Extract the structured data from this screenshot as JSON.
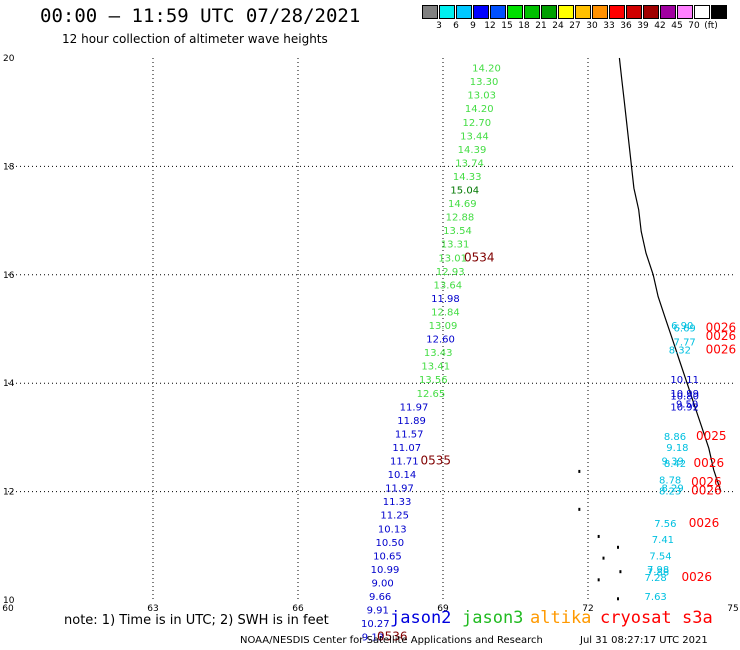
{
  "header": {
    "title": "00:00 – 11:59 UTC 07/28/2021",
    "subtitle": "12 hour collection of altimeter wave heights"
  },
  "legend": {
    "colors": [
      "#808080",
      "#00f0f0",
      "#00c8ff",
      "#0000ff",
      "#0050ff",
      "#00e000",
      "#00c000",
      "#00a000",
      "#ffff00",
      "#ffc000",
      "#ff9000",
      "#ff0000",
      "#d00000",
      "#a00000",
      "#a000a0",
      "#ff80ff",
      "#ffffff",
      "#000000"
    ],
    "labels": [
      "3",
      "6",
      "9",
      "12",
      "15",
      "18",
      "21",
      "24",
      "27",
      "30",
      "33",
      "36",
      "39",
      "42",
      "45",
      "70",
      "(ft)"
    ]
  },
  "map": {
    "lon_range": [
      60,
      75
    ],
    "lat_range": [
      10,
      20
    ],
    "x_ticks": [
      "60",
      "63",
      "66",
      "69",
      "72",
      "75"
    ],
    "y_ticks": [
      "10",
      "12",
      "14",
      "16",
      "18",
      "20"
    ],
    "colors": {
      "jason2": "#0000cc",
      "jason3": "#44dd44",
      "cryosat": "#ff0000",
      "time": "#800000",
      "altika_legend": "#ff9900",
      "cryosat_legend": "#ff0000",
      "s3a": "#00c0e0"
    },
    "jason3_track": [
      {
        "v": "14.20",
        "lon": 69.9,
        "lat": 19.75
      },
      {
        "v": "13.30",
        "lon": 69.85,
        "lat": 19.5
      },
      {
        "v": "13.03",
        "lon": 69.8,
        "lat": 19.25
      },
      {
        "v": "14.20",
        "lon": 69.75,
        "lat": 19.0
      },
      {
        "v": "12.70",
        "lon": 69.7,
        "lat": 18.75
      },
      {
        "v": "13.44",
        "lon": 69.65,
        "lat": 18.5
      },
      {
        "v": "14.39",
        "lon": 69.6,
        "lat": 18.25
      },
      {
        "v": "13.74",
        "lon": 69.55,
        "lat": 18.0
      },
      {
        "v": "14.33",
        "lon": 69.5,
        "lat": 17.75
      },
      {
        "v": "15.04",
        "lon": 69.45,
        "lat": 17.5
      },
      {
        "v": "14.69",
        "lon": 69.4,
        "lat": 17.25
      },
      {
        "v": "12.88",
        "lon": 69.35,
        "lat": 17.0
      },
      {
        "v": "13.54",
        "lon": 69.3,
        "lat": 16.75
      },
      {
        "v": "13.31",
        "lon": 69.25,
        "lat": 16.5
      },
      {
        "v": "13.01",
        "lon": 69.2,
        "lat": 16.25
      },
      {
        "v": "12.93",
        "lon": 69.15,
        "lat": 16.0
      },
      {
        "v": "13.64",
        "lon": 69.1,
        "lat": 15.75
      },
      {
        "v": "12.84",
        "lon": 69.05,
        "lat": 15.25
      },
      {
        "v": "13.09",
        "lon": 69.0,
        "lat": 15.0
      },
      {
        "v": "13.43",
        "lon": 68.9,
        "lat": 14.5
      },
      {
        "v": "13.41",
        "lon": 68.85,
        "lat": 14.25
      },
      {
        "v": "13.56",
        "lon": 68.8,
        "lat": 14.0
      },
      {
        "v": "12.65",
        "lon": 68.75,
        "lat": 13.75
      }
    ],
    "jason2_track": [
      {
        "v": "11.98",
        "lon": 69.05,
        "lat": 15.5
      },
      {
        "v": "12.60",
        "lon": 68.95,
        "lat": 14.75
      },
      {
        "v": "11.97",
        "lon": 68.4,
        "lat": 13.5
      },
      {
        "v": "11.89",
        "lon": 68.35,
        "lat": 13.25
      },
      {
        "v": "11.57",
        "lon": 68.3,
        "lat": 13.0
      },
      {
        "v": "11.07",
        "lon": 68.25,
        "lat": 12.75
      },
      {
        "v": "11.71",
        "lon": 68.2,
        "lat": 12.5
      },
      {
        "v": "10.14",
        "lon": 68.15,
        "lat": 12.25
      },
      {
        "v": "11.97",
        "lon": 68.1,
        "lat": 12.0
      },
      {
        "v": "11.33",
        "lon": 68.05,
        "lat": 11.75
      },
      {
        "v": "11.25",
        "lon": 68.0,
        "lat": 11.5
      },
      {
        "v": "10.13",
        "lon": 67.95,
        "lat": 11.25
      },
      {
        "v": "10.50",
        "lon": 67.9,
        "lat": 11.0
      },
      {
        "v": "10.65",
        "lon": 67.85,
        "lat": 10.75
      },
      {
        "v": "10.99",
        "lon": 67.8,
        "lat": 10.5
      },
      {
        "v": "9.00",
        "lon": 67.75,
        "lat": 10.25
      },
      {
        "v": "9.66",
        "lon": 67.7,
        "lat": 10.0
      },
      {
        "v": "9.91",
        "lon": 67.65,
        "lat": 9.75
      },
      {
        "v": "10.27",
        "lon": 67.6,
        "lat": 9.5
      },
      {
        "v": "9.13",
        "lon": 67.55,
        "lat": 9.25
      }
    ],
    "s3a_track": [
      {
        "v": "6.90",
        "lon": 73.95,
        "lat": 15.0
      },
      {
        "v": "6.69",
        "lon": 74.0,
        "lat": 14.95
      },
      {
        "v": "7.77",
        "lon": 74.0,
        "lat": 14.7
      },
      {
        "v": "8.32",
        "lon": 73.9,
        "lat": 14.55
      },
      {
        "v": "8.86",
        "lon": 73.8,
        "lat": 12.95
      },
      {
        "v": "9.18",
        "lon": 73.85,
        "lat": 12.75
      },
      {
        "v": "9.39",
        "lon": 73.75,
        "lat": 12.5
      },
      {
        "v": "8.42",
        "lon": 73.8,
        "lat": 12.45
      },
      {
        "v": "8.78",
        "lon": 73.7,
        "lat": 12.15
      },
      {
        "v": "8.29",
        "lon": 73.75,
        "lat": 12.0
      },
      {
        "v": "8.23",
        "lon": 73.7,
        "lat": 11.95
      },
      {
        "v": "7.56",
        "lon": 73.6,
        "lat": 11.35
      },
      {
        "v": "7.41",
        "lon": 73.55,
        "lat": 11.05
      },
      {
        "v": "7.54",
        "lon": 73.5,
        "lat": 10.75
      },
      {
        "v": "7.98",
        "lon": 73.45,
        "lat": 10.5
      },
      {
        "v": "7.88",
        "lon": 73.45,
        "lat": 10.45
      },
      {
        "v": "7.28",
        "lon": 73.4,
        "lat": 10.35
      },
      {
        "v": "7.63",
        "lon": 73.4,
        "lat": 10.0
      }
    ],
    "jason2_upper": [
      {
        "v": "10.11",
        "lon": 74.0,
        "lat": 14.0
      },
      {
        "v": "10.99",
        "lon": 74.0,
        "lat": 13.75
      },
      {
        "v": "10.80",
        "lon": 74.0,
        "lat": 13.7
      },
      {
        "v": "9.50",
        "lon": 74.05,
        "lat": 13.55
      },
      {
        "v": "10.92",
        "lon": 74.0,
        "lat": 13.5
      }
    ],
    "times": [
      {
        "t": "0534",
        "lon": 69.75,
        "lat": 16.25,
        "cls": "time"
      },
      {
        "t": "0535",
        "lon": 68.85,
        "lat": 12.5,
        "cls": "time"
      },
      {
        "t": "0536",
        "lon": 67.95,
        "lat": 9.25,
        "cls": "time"
      },
      {
        "t": "0026",
        "lon": 74.75,
        "lat": 14.95,
        "cls": "cryosat"
      },
      {
        "t": "0026",
        "lon": 74.75,
        "lat": 14.8,
        "cls": "cryosat"
      },
      {
        "t": "0026",
        "lon": 74.75,
        "lat": 14.55,
        "cls": "cryosat"
      },
      {
        "t": "0025",
        "lon": 74.55,
        "lat": 12.95,
        "cls": "cryosat"
      },
      {
        "t": "0026",
        "lon": 74.5,
        "lat": 12.45,
        "cls": "cryosat"
      },
      {
        "t": "0026",
        "lon": 74.45,
        "lat": 12.1,
        "cls": "cryosat"
      },
      {
        "t": "0026",
        "lon": 74.45,
        "lat": 11.95,
        "cls": "cryosat"
      },
      {
        "t": "0026",
        "lon": 74.4,
        "lat": 11.35,
        "cls": "cryosat"
      },
      {
        "t": "0026",
        "lon": 74.25,
        "lat": 10.35,
        "cls": "cryosat"
      }
    ],
    "coastline": [
      [
        72.65,
        20.0
      ],
      [
        72.7,
        19.6
      ],
      [
        72.75,
        19.2
      ],
      [
        72.8,
        18.8
      ],
      [
        72.85,
        18.4
      ],
      [
        72.9,
        18.0
      ],
      [
        72.95,
        17.6
      ],
      [
        73.05,
        17.2
      ],
      [
        73.1,
        16.8
      ],
      [
        73.2,
        16.4
      ],
      [
        73.35,
        16.0
      ],
      [
        73.45,
        15.6
      ],
      [
        73.6,
        15.2
      ],
      [
        73.75,
        14.8
      ],
      [
        73.9,
        14.4
      ],
      [
        74.05,
        14.0
      ],
      [
        74.2,
        13.6
      ],
      [
        74.35,
        13.2
      ],
      [
        74.5,
        12.8
      ],
      [
        74.6,
        12.4
      ],
      [
        74.75,
        12.0
      ]
    ],
    "islands": [
      [
        71.8,
        12.4
      ],
      [
        71.8,
        11.7
      ],
      [
        72.2,
        11.2
      ],
      [
        72.6,
        11.0
      ],
      [
        72.3,
        10.8
      ],
      [
        72.65,
        10.55
      ],
      [
        72.2,
        10.4
      ],
      [
        72.6,
        10.05
      ]
    ]
  },
  "footer": {
    "note": "note: 1) Time is in UTC; 2) SWH is in feet",
    "sat_jason2": "jason2",
    "sat_jason3": "jason3",
    "sat_altika": "altika",
    "sat_cryosat": "cryosat",
    "sat_s3a": "s3a",
    "credit": "NOAA/NESDIS Center for Satellite Applications and Research",
    "timestamp": "Jul 31 08:27:17 UTC 2021"
  }
}
